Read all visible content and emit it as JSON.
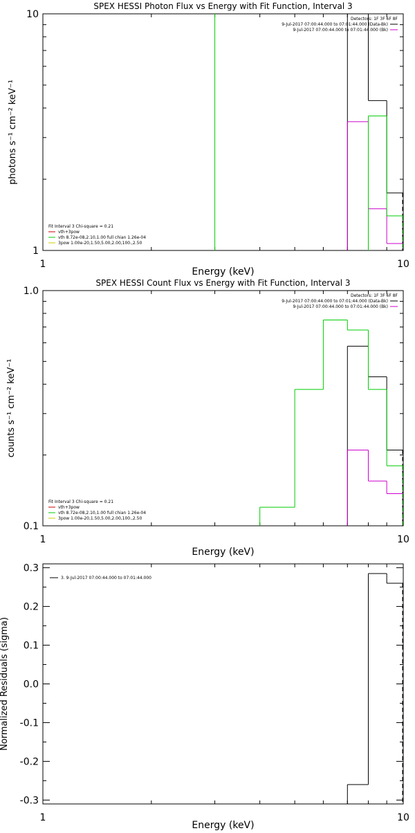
{
  "chart_data": [
    {
      "type": "line",
      "title": "SPEX HESSI Photon Flux vs Energy with Fit Function, Interval 3",
      "xlabel": "Energy (keV)",
      "ylabel": "photons s⁻¹ cm⁻² keV⁻¹",
      "xscale": "log",
      "yscale": "log",
      "xlim": [
        1,
        10
      ],
      "ylim": [
        1,
        10
      ],
      "xticks": [
        "1",
        "10"
      ],
      "yticks": [
        "1",
        "10"
      ],
      "legend_top_right": {
        "header": "Detectors: 1F 3F 6F 8F",
        "entries": [
          {
            "text": "9-Jul-2017 07:00:44.000 to 07:01:44.000 (Data-Bk)",
            "color": "#000000"
          },
          {
            "text": "9-Jul-2017 07:00:44.000 to 07:01:44.000 (Bk)",
            "color": "#cc00cc"
          }
        ]
      },
      "legend_bottom_left": {
        "header": "Fit Interval 3   Chi-square = 0.21",
        "entries": [
          {
            "text": "vth+3pow",
            "color": "#cc0000"
          },
          {
            "text": "vth 8.72e-08,2.10,1.00  full chian 1.26e-04",
            "color": "#00cc00"
          },
          {
            "text": "3pow 1.00e-20,1.50,5.00,2.00,100.,2.50",
            "color": "#cccc00"
          }
        ]
      },
      "series": [
        {
          "color": "#000000",
          "steps": [
            [
              7,
              8,
              10
            ],
            [
              8,
              9,
              4.3
            ],
            [
              9,
              10,
              1.75
            ]
          ]
        },
        {
          "color": "#cc00cc",
          "steps": [
            [
              7,
              8,
              3.5
            ],
            [
              8,
              9,
              1.5
            ],
            [
              9,
              10,
              1.07
            ]
          ]
        },
        {
          "color": "#00cc00",
          "steps": [
            [
              8,
              9,
              3.7
            ],
            [
              9,
              10,
              1.4
            ]
          ],
          "vlines": [
            3
          ]
        }
      ]
    },
    {
      "type": "line",
      "title": "SPEX HESSI Count Flux vs Energy with Fit Function, Interval 3",
      "xlabel": "Energy (keV)",
      "ylabel": "counts s⁻¹ cm⁻² keV⁻¹",
      "xscale": "log",
      "yscale": "log",
      "xlim": [
        1,
        10
      ],
      "ylim": [
        0.1,
        1.0
      ],
      "xticks": [
        "1",
        "10"
      ],
      "yticks": [
        "0.1",
        "1.0"
      ],
      "legend_top_right": {
        "header": "Detectors: 1F 3F 6F 8F",
        "entries": [
          {
            "text": "9-Jul-2017 07:00:44.000 to 07:01:44.000 (Data-Bk)",
            "color": "#000000"
          },
          {
            "text": "9-Jul-2017 07:00:44.000 to 07:01:44.000 (Bk)",
            "color": "#cc00cc"
          }
        ]
      },
      "legend_bottom_left": {
        "header": "Fit Interval 3   Chi-square = 0.21",
        "entries": [
          {
            "text": "vth+3pow",
            "color": "#cc0000"
          },
          {
            "text": "vth 8.72e-08,2.10,1.00  full chian 1.26e-04",
            "color": "#00cc00"
          },
          {
            "text": "3pow 1.00e-20,1.50,5.00,2.00,100.,2.50",
            "color": "#cccc00"
          }
        ]
      },
      "series": [
        {
          "color": "#000000",
          "steps": [
            [
              7,
              8,
              0.58
            ],
            [
              8,
              9,
              0.43
            ],
            [
              9,
              10,
              0.21
            ]
          ]
        },
        {
          "color": "#cc00cc",
          "steps": [
            [
              7,
              8,
              0.21
            ],
            [
              8,
              9,
              0.155
            ],
            [
              9,
              10,
              0.137
            ]
          ]
        },
        {
          "color": "#00cc00",
          "steps": [
            [
              4,
              5,
              0.12
            ],
            [
              5,
              6,
              0.38
            ],
            [
              6,
              7,
              0.75
            ],
            [
              7,
              8,
              0.68
            ],
            [
              8,
              9,
              0.38
            ],
            [
              9,
              10,
              0.18
            ]
          ]
        }
      ]
    },
    {
      "type": "line",
      "title": "",
      "xlabel": "Energy (keV)",
      "ylabel": "Normalized Residuals (sigma)",
      "xscale": "log",
      "yscale": "linear",
      "xlim": [
        1,
        10
      ],
      "ylim": [
        -0.31,
        0.31
      ],
      "xticks": [
        "1",
        "10"
      ],
      "yticks": [
        "-0.3",
        "-0.2",
        "-0.1",
        "0.0",
        "0.1",
        "0.2",
        "0.3"
      ],
      "legend_top_left": {
        "entries": [
          {
            "text": "3.  9-Jul-2017 07:00:44.000 to 07:01:44.000",
            "color": "#000000"
          }
        ]
      },
      "series": [
        {
          "color": "#000000",
          "steps": [
            [
              7,
              8,
              -0.26
            ],
            [
              8,
              9,
              0.285
            ],
            [
              9,
              10,
              0.26
            ]
          ]
        }
      ]
    }
  ]
}
